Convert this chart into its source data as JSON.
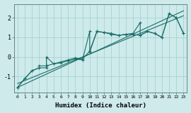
{
  "xlabel": "Humidex (Indice chaleur)",
  "xlim": [
    -0.5,
    23.5
  ],
  "ylim": [
    -1.8,
    2.7
  ],
  "yticks": [
    -1,
    0,
    1,
    2
  ],
  "xticks": [
    0,
    1,
    2,
    3,
    4,
    5,
    6,
    7,
    8,
    9,
    10,
    11,
    12,
    13,
    14,
    15,
    16,
    17,
    18,
    19,
    20,
    21,
    22,
    23
  ],
  "bg_color": "#ceeaea",
  "line_color": "#1a6e6a",
  "trend_x": [
    0,
    23
  ],
  "trend_y": [
    -1.55,
    2.35
  ],
  "trend2_x": [
    0,
    23
  ],
  "trend2_y": [
    -1.35,
    2.1
  ],
  "series1_x": [
    0,
    1,
    2,
    3,
    4,
    4,
    5,
    6,
    7,
    8,
    9,
    10,
    10,
    11,
    11,
    12,
    13,
    14,
    15,
    16,
    17,
    17,
    18,
    19,
    20,
    21,
    22,
    23
  ],
  "series1_y": [
    -1.55,
    -1.1,
    -0.7,
    -0.55,
    -0.55,
    0.0,
    -0.35,
    -0.3,
    -0.2,
    -0.1,
    -0.15,
    1.3,
    0.25,
    1.3,
    1.3,
    1.25,
    1.2,
    1.1,
    1.15,
    1.2,
    1.75,
    1.1,
    1.3,
    1.2,
    1.0,
    2.2,
    2.0,
    1.2
  ],
  "series2_x": [
    0,
    1,
    2,
    3,
    3,
    4,
    5,
    6,
    7,
    8,
    9,
    10,
    11,
    12,
    13,
    14,
    15,
    16,
    17,
    18,
    19,
    20,
    21,
    22,
    23
  ],
  "series2_y": [
    -1.55,
    -1.1,
    -0.7,
    -0.55,
    -0.45,
    -0.45,
    -0.35,
    -0.25,
    -0.15,
    -0.05,
    -0.1,
    0.3,
    1.3,
    1.25,
    1.15,
    1.1,
    1.15,
    1.15,
    1.1,
    1.3,
    1.2,
    1.0,
    2.2,
    2.0,
    1.2
  ]
}
